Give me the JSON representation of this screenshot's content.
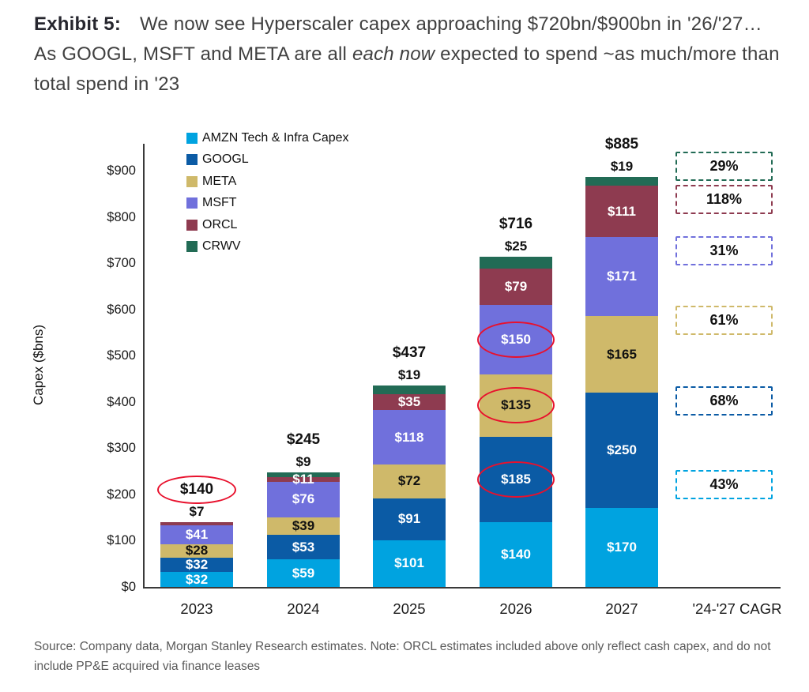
{
  "title": {
    "exhibit_label": "Exhibit 5:",
    "segments": [
      {
        "text": "We now see Hyperscaler capex approaching $720bn/$900bn in '26/'27… As GOOGL, MSFT and META are all ",
        "italic": false
      },
      {
        "text": "each now",
        "italic": true
      },
      {
        "text": " expected to spend ~as much/more than total spend in '23",
        "italic": false
      }
    ]
  },
  "footer": {
    "source_note": "Source: Company data, Morgan Stanley Research estimates. Note: ORCL estimates included above only reflect cash capex, and do not include PP&E acquired via finance leases"
  },
  "chart_data": {
    "type": "bar",
    "stacked": true,
    "title": "We now see Hyperscaler capex approaching $720bn/$900bn in '26/'27… As GOOGL, MSFT and META are all each now expected to spend ~as much/more than total spend in '23",
    "ylabel": "Capex ($bns)",
    "xlabel": "",
    "ylim": [
      0,
      900
    ],
    "ytick_step": 100,
    "value_prefix": "$",
    "grid": false,
    "legend_position": "top-left",
    "categories": [
      "2023",
      "2024",
      "2025",
      "2026",
      "2027"
    ],
    "cagr_column_label": "'24-'27 CAGR",
    "series": [
      {
        "name": "AMZN Tech & Infra Capex",
        "short": "AMZN",
        "color": "#00A3E0",
        "values": [
          32,
          59,
          101,
          140,
          170
        ],
        "label_color": "#FFFFFF",
        "label_placement": [
          "inside",
          "inside",
          "inside",
          "inside",
          "inside"
        ],
        "circled": [],
        "cagr_24_27": "43%"
      },
      {
        "name": "GOOGL",
        "short": "GOOGL",
        "color": "#0B5BA5",
        "values": [
          32,
          53,
          91,
          185,
          250
        ],
        "label_color": "#FFFFFF",
        "label_placement": [
          "inside",
          "inside",
          "inside",
          "inside",
          "inside"
        ],
        "circled": [
          3
        ],
        "cagr_24_27": "68%"
      },
      {
        "name": "META",
        "short": "META",
        "color": "#CFB96A",
        "values": [
          28,
          39,
          72,
          135,
          165
        ],
        "label_color": "#111111",
        "label_placement": [
          "inside",
          "inside",
          "inside",
          "inside",
          "inside"
        ],
        "circled": [
          3
        ],
        "cagr_24_27": "61%"
      },
      {
        "name": "MSFT",
        "short": "MSFT",
        "color": "#7070DC",
        "values": [
          41,
          76,
          118,
          150,
          171
        ],
        "label_color": "#FFFFFF",
        "label_placement": [
          "inside",
          "inside",
          "inside",
          "inside",
          "inside"
        ],
        "circled": [
          3
        ],
        "cagr_24_27": "31%"
      },
      {
        "name": "ORCL",
        "short": "ORCL",
        "color": "#8E3B50",
        "values": [
          7,
          11,
          35,
          79,
          111
        ],
        "label_color": "#FFFFFF",
        "label_placement": [
          "above",
          "inside",
          "inside",
          "inside",
          "inside"
        ],
        "circled": [],
        "cagr_24_27": "118%"
      },
      {
        "name": "CRWV",
        "short": "CRWV",
        "color": "#226B55",
        "values": [
          0,
          9,
          19,
          25,
          19
        ],
        "label_color": "#111111",
        "label_placement": [
          "none",
          "above",
          "above",
          "above",
          "above"
        ],
        "circled": [],
        "cagr_24_27": "29%"
      }
    ],
    "totals": [
      140,
      245,
      437,
      716,
      885
    ],
    "totals_circled": [
      0
    ],
    "cagr_boxes_order": [
      "CRWV",
      "ORCL",
      "MSFT",
      "META",
      "GOOGL",
      "AMZN"
    ],
    "highlight_color": "#E8112D"
  }
}
